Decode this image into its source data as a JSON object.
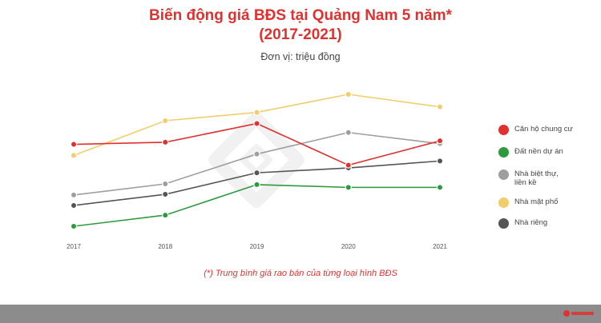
{
  "header": {
    "title_line1": "Biến động giá BĐS tại Quảng Nam 5 năm*",
    "title_line2": "(2017-2021)",
    "unit": "Đơn vị: triệu đồng"
  },
  "footnote": "(*) Trung bình giá rao bán của từng loại hình BĐS",
  "colors": {
    "title": "#e0312f",
    "bottom_bar": "#8c8c8c"
  },
  "chart_data": {
    "type": "line",
    "categories": [
      "2017",
      "2018",
      "2019",
      "2020",
      "2021"
    ],
    "legend_position": "right",
    "grid": false,
    "series": [
      {
        "name": "Căn hộ chung cư",
        "color": "#e0312f",
        "values": [
          128,
          131,
          158,
          98,
          133
        ]
      },
      {
        "name": "Đất nền dự án",
        "color": "#2d9a3e",
        "values": [
          10,
          26,
          70,
          66,
          66
        ]
      },
      {
        "name": "Nhà biệt thự, liền kề",
        "color": "#9e9e9e",
        "values": [
          55,
          71,
          114,
          145,
          129
        ]
      },
      {
        "name": "Nhà mặt phố",
        "color": "#f3cd6b",
        "values": [
          112,
          162,
          174,
          200,
          182
        ]
      },
      {
        "name": "Nhà riêng",
        "color": "#555555",
        "values": [
          40,
          56,
          87,
          94,
          104
        ]
      }
    ]
  }
}
